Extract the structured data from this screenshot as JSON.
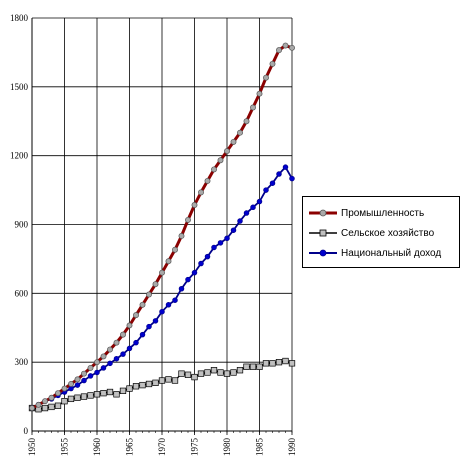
{
  "chart_data": {
    "type": "line",
    "title": "",
    "xlabel": "",
    "ylabel": "",
    "xlim": [
      1950,
      1990
    ],
    "ylim": [
      0,
      1800
    ],
    "yticks": [
      0,
      300,
      600,
      900,
      1200,
      1500,
      1800
    ],
    "xticks": [
      1950,
      1955,
      1960,
      1965,
      1970,
      1975,
      1980,
      1985,
      1990
    ],
    "grid": true,
    "legend_position": "right",
    "x": [
      1950,
      1951,
      1952,
      1953,
      1954,
      1955,
      1956,
      1957,
      1958,
      1959,
      1960,
      1961,
      1962,
      1963,
      1964,
      1965,
      1966,
      1967,
      1968,
      1969,
      1970,
      1971,
      1972,
      1973,
      1974,
      1975,
      1976,
      1977,
      1978,
      1979,
      1980,
      1981,
      1982,
      1983,
      1984,
      1985,
      1986,
      1987,
      1988,
      1989,
      1990
    ],
    "series": [
      {
        "name": "Промышленность",
        "color": "#8b0000",
        "marker": "circle-gray",
        "values": [
          100,
          114,
          130,
          145,
          165,
          185,
          205,
          225,
          250,
          275,
          300,
          325,
          355,
          385,
          420,
          460,
          505,
          550,
          595,
          640,
          690,
          740,
          790,
          850,
          920,
          985,
          1040,
          1090,
          1140,
          1180,
          1220,
          1260,
          1300,
          1350,
          1410,
          1470,
          1540,
          1600,
          1660,
          1680,
          1670
        ]
      },
      {
        "name": "Сельское хозяйство",
        "color": "#000000",
        "marker": "square-gray",
        "values": [
          100,
          95,
          100,
          105,
          110,
          130,
          140,
          145,
          150,
          155,
          160,
          165,
          170,
          160,
          175,
          185,
          195,
          200,
          205,
          210,
          220,
          225,
          220,
          250,
          245,
          235,
          250,
          255,
          265,
          255,
          250,
          255,
          265,
          280,
          280,
          280,
          295,
          295,
          300,
          305,
          295
        ]
      },
      {
        "name": "Национальный  доход",
        "color": "#00008b",
        "marker": "circle-blue",
        "values": [
          100,
          115,
          130,
          140,
          155,
          170,
          185,
          200,
          220,
          240,
          255,
          275,
          295,
          315,
          335,
          360,
          385,
          420,
          455,
          480,
          520,
          550,
          570,
          620,
          660,
          690,
          730,
          760,
          800,
          820,
          840,
          875,
          915,
          950,
          975,
          1000,
          1050,
          1080,
          1120,
          1150,
          1100
        ]
      }
    ]
  }
}
